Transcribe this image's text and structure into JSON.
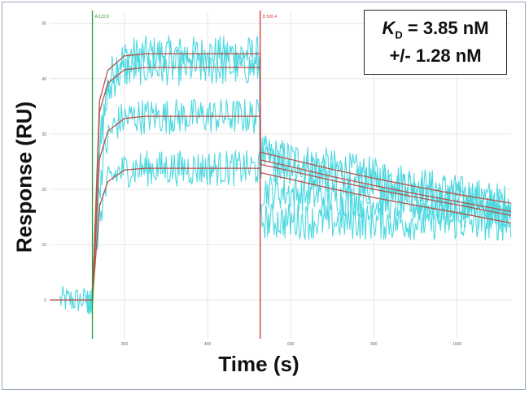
{
  "chart_data": {
    "type": "line",
    "title": "",
    "xlabel": "Time (s)",
    "ylabel": "Response (RU)",
    "xlim": [
      20,
      1130
    ],
    "ylim": [
      -7,
      52
    ],
    "x_ticks": [
      200,
      400,
      600,
      800,
      1000
    ],
    "y_ticks": [
      0,
      10,
      20,
      30,
      40,
      50
    ],
    "grid": true,
    "markers": [
      {
        "label": "A:122.9",
        "x": 122.9,
        "color": "#2a9a2a"
      },
      {
        "label": "D:526.4",
        "x": 526.4,
        "color": "#cc3333"
      }
    ],
    "raw_data_color": "#4dd8e0",
    "fit_color": "#b5534a",
    "series": [
      {
        "plateau": 44.5,
        "end": 17.5
      },
      {
        "plateau": 42.0,
        "end": 16.0
      },
      {
        "plateau": 33.2,
        "end": 15.3
      },
      {
        "plateau": 23.8,
        "end": 13.9
      }
    ],
    "fit_curves": [
      {
        "x": [
          20,
          122.9,
          140,
          160,
          200,
          250,
          300,
          400,
          526.4,
          527,
          600,
          700,
          800,
          900,
          1000,
          1130
        ],
        "y": [
          0,
          0,
          36.0,
          41.5,
          44.1,
          44.5,
          44.5,
          44.5,
          44.5,
          26.7,
          25.4,
          23.6,
          22.0,
          20.5,
          19.1,
          17.5
        ]
      },
      {
        "x": [
          20,
          122.9,
          140,
          160,
          200,
          250,
          300,
          400,
          526.4,
          527,
          600,
          700,
          800,
          900,
          1000,
          1130
        ],
        "y": [
          0,
          0,
          34.0,
          39.2,
          41.6,
          42.0,
          42.0,
          42.0,
          42.0,
          25.3,
          24.1,
          22.3,
          20.7,
          19.2,
          17.8,
          16.0
        ]
      },
      {
        "x": [
          20,
          122.9,
          140,
          160,
          200,
          250,
          300,
          400,
          526.4,
          527,
          600,
          700,
          800,
          900,
          1000,
          1130
        ],
        "y": [
          0,
          0,
          25.5,
          30.5,
          32.8,
          33.2,
          33.2,
          33.2,
          33.2,
          24.5,
          23.3,
          21.6,
          20.0,
          18.6,
          17.2,
          15.3
        ]
      },
      {
        "x": [
          20,
          122.9,
          140,
          160,
          200,
          250,
          300,
          400,
          526.4,
          527,
          600,
          700,
          800,
          900,
          1000,
          1130
        ],
        "y": [
          0,
          0,
          17.0,
          21.4,
          23.5,
          23.8,
          23.8,
          23.8,
          23.8,
          23.0,
          21.8,
          20.1,
          18.5,
          17.1,
          15.8,
          13.9
        ]
      }
    ],
    "annotation": {
      "kd_symbol": "K",
      "kd_sub": "D",
      "kd_value": " = 3.85 nM",
      "kd_error": "+/- 1.28 nM"
    }
  }
}
